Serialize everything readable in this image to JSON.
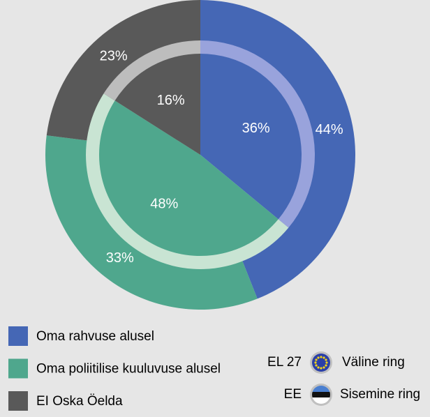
{
  "chart_data": {
    "type": "pie",
    "categories": [
      "Oma rahvuse alusel",
      "Oma poliitilise kuuluvuse alusel",
      "EI Oska Öelda"
    ],
    "colors": [
      "#4567b5",
      "#4fa78d",
      "#595959"
    ],
    "band_colors": [
      "#99a3dc",
      "#c9e4d3",
      "#bdbdbd"
    ],
    "series": [
      {
        "name": "EL 27",
        "ring_label": "Väline ring",
        "values": [
          44,
          33,
          23
        ],
        "value_labels": [
          "44%",
          "33%",
          "23%"
        ]
      },
      {
        "name": "EE",
        "ring_label": "Sisemine ring",
        "values": [
          36,
          48,
          16
        ],
        "value_labels": [
          "36%",
          "48%",
          "16%"
        ]
      }
    ]
  }
}
